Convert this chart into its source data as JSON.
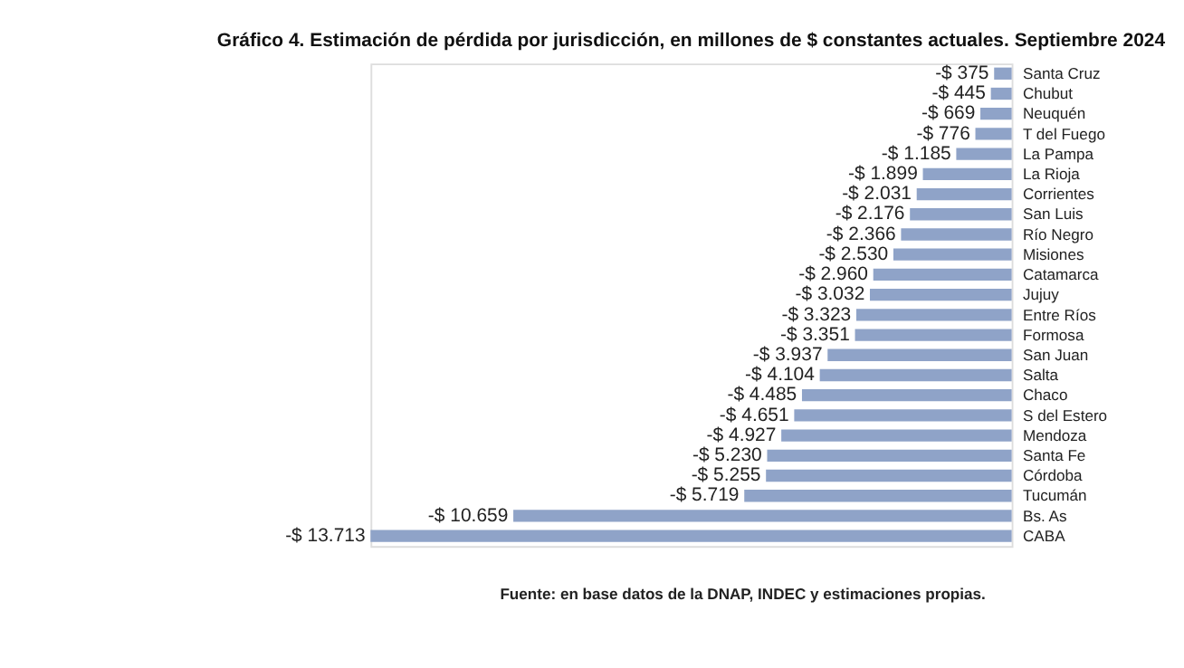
{
  "chart_data": {
    "type": "bar",
    "orientation": "horizontal",
    "title": "Gráfico 4. Estimación de pérdida por jurisdicción, en millones de $ constantes actuales. Septiembre 2024",
    "categories": [
      "Santa Cruz",
      "Chubut",
      "Neuquén",
      "T del Fuego",
      "La Pampa",
      "La Rioja",
      "Corrientes",
      "San Luis",
      "Río Negro",
      "Misiones",
      "Catamarca",
      "Jujuy",
      "Entre Ríos",
      "Formosa",
      "San Juan",
      "Salta",
      "Chaco",
      "S del Estero",
      "Mendoza",
      "Santa Fe",
      "Córdoba",
      "Tucumán",
      "Bs. As",
      "CABA"
    ],
    "values": [
      -375,
      -445,
      -669,
      -776,
      -1185,
      -1899,
      -2031,
      -2176,
      -2366,
      -2530,
      -2960,
      -3032,
      -3323,
      -3351,
      -3937,
      -4104,
      -4485,
      -4651,
      -4927,
      -5230,
      -5255,
      -5719,
      -10659,
      -13713
    ],
    "value_labels": [
      "-$ 375",
      "-$ 445",
      "-$ 669",
      "-$ 776",
      "-$ 1.185",
      "-$ 1.899",
      "-$ 2.031",
      "-$ 2.176",
      "-$ 2.366",
      "-$ 2.530",
      "-$ 2.960",
      "-$ 3.032",
      "-$ 3.323",
      "-$ 3.351",
      "-$ 3.937",
      "-$ 4.104",
      "-$ 4.485",
      "-$ 4.651",
      "-$ 4.927",
      "-$ 5.230",
      "-$ 5.255",
      "-$ 5.719",
      "-$ 10.659",
      "-$ 13.713"
    ],
    "color": "#8fa3c8",
    "annotations": [
      "Fuente: en base datos de la DNAP, INDEC y estimaciones propias."
    ]
  }
}
